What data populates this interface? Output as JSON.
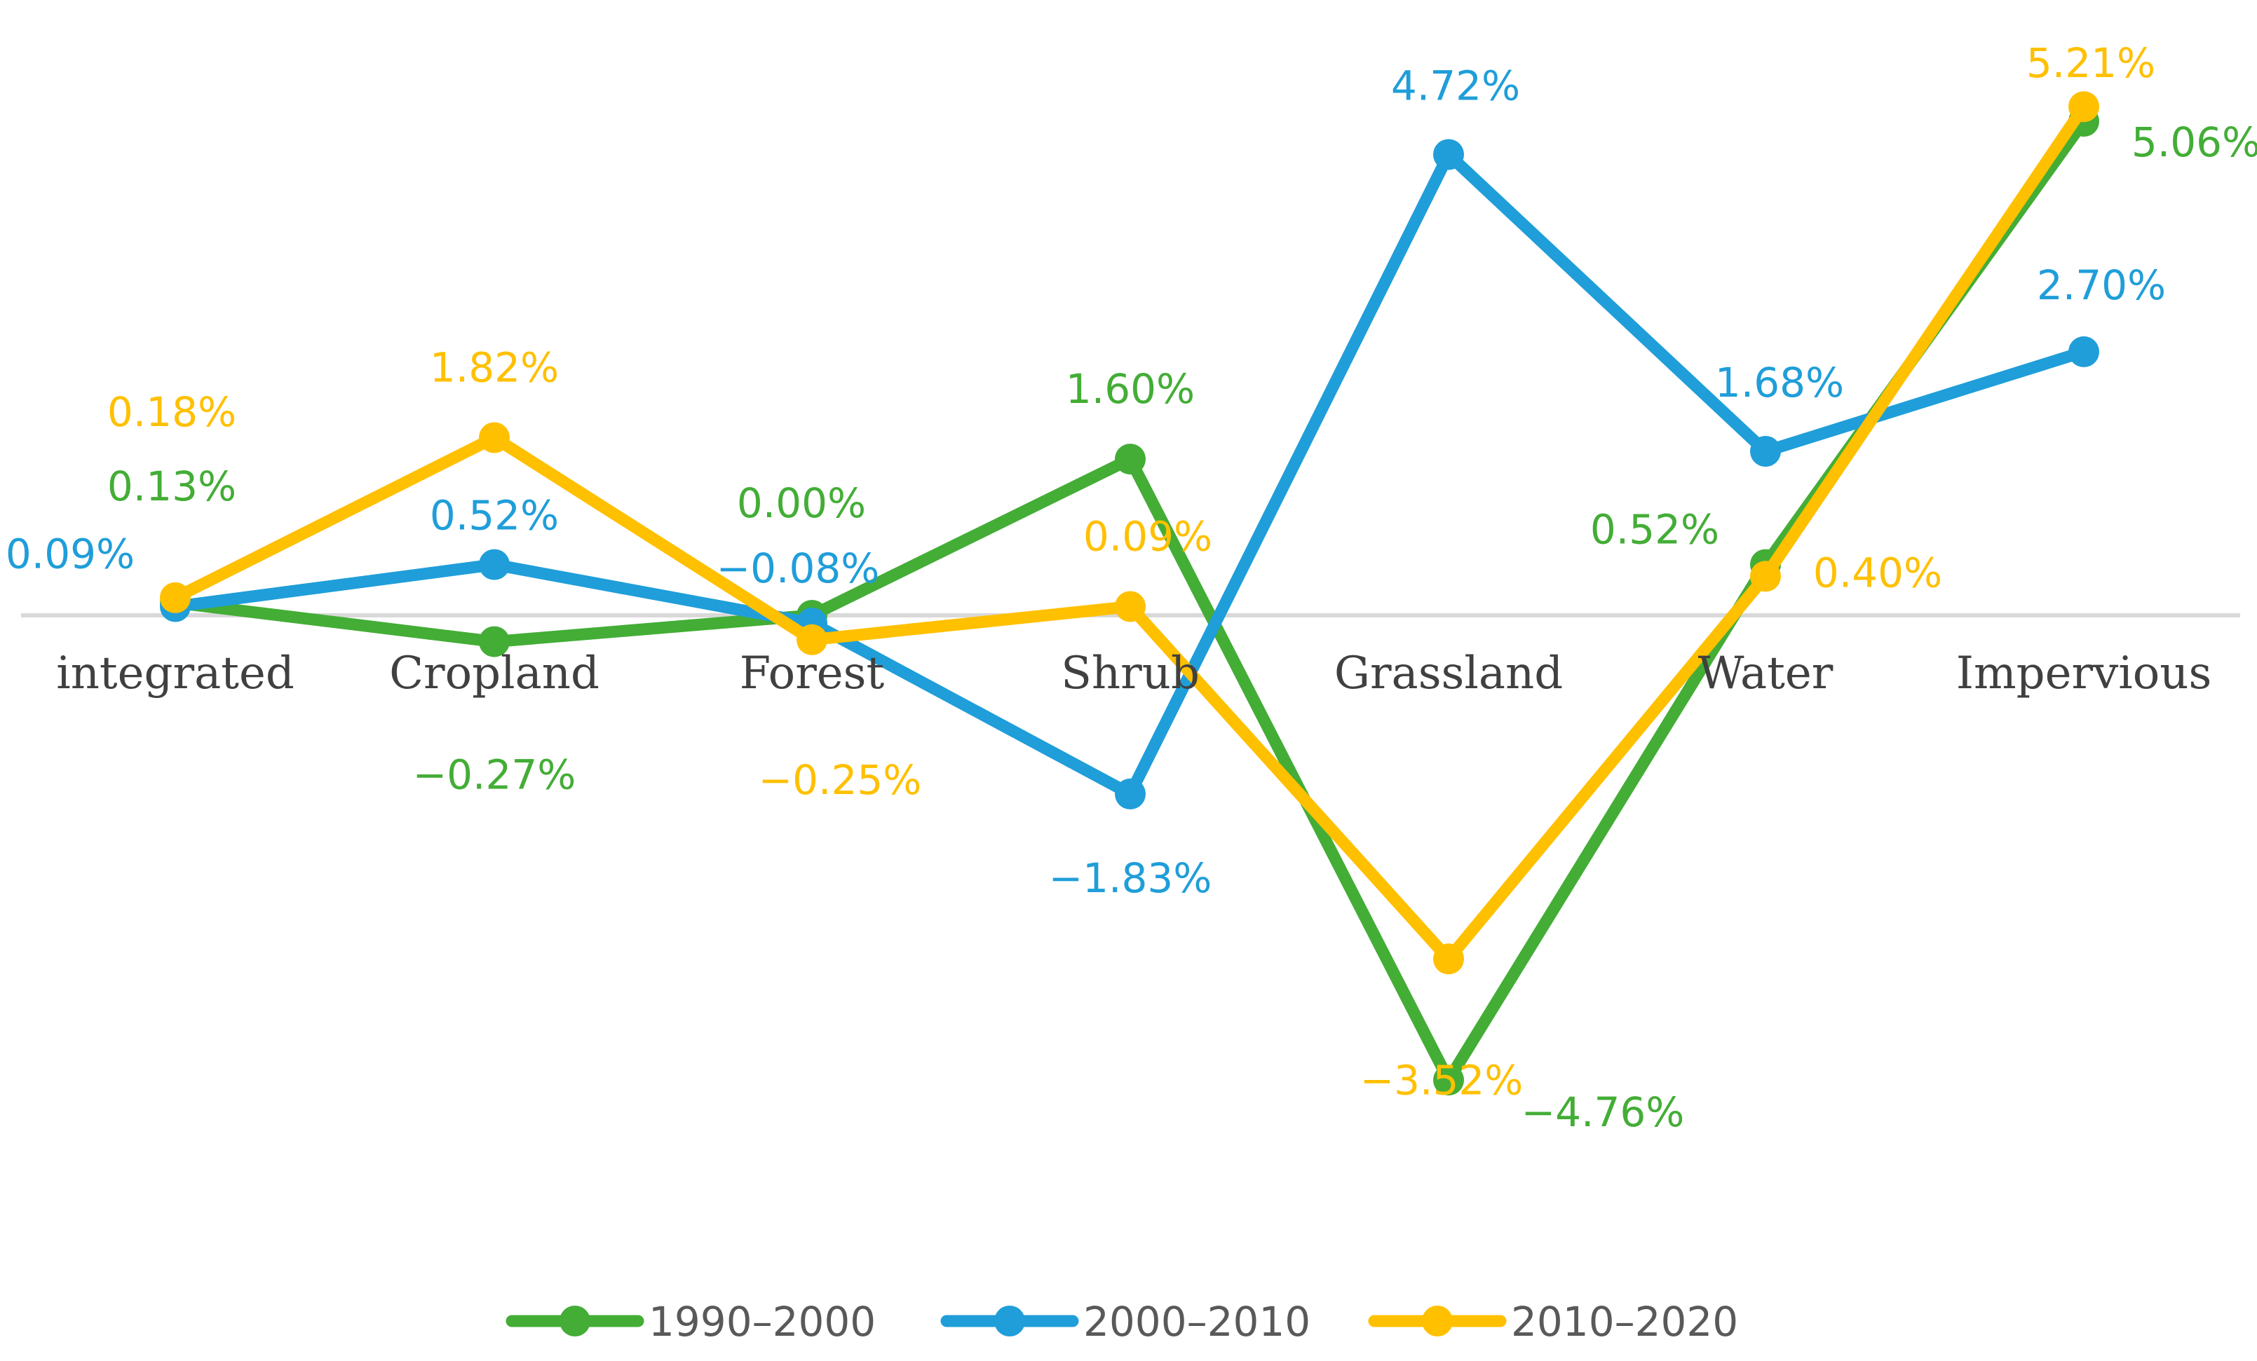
{
  "chart_data": {
    "type": "line",
    "title": "",
    "xlabel": "",
    "ylabel": "",
    "ylim": [
      -6,
      6
    ],
    "grid": false,
    "legend_position": "bottom",
    "categories": [
      "integrated",
      "Cropland",
      "Forest",
      "Shrub",
      "Grassland",
      "Water",
      "Impervious"
    ],
    "series": [
      {
        "name": "1990–2000",
        "color": "#43AD36",
        "values": [
          0.13,
          -0.27,
          0.0,
          1.6,
          -4.76,
          0.52,
          5.06
        ],
        "labels": [
          "0.13%",
          "−0.27%",
          "0.00%",
          "1.60%",
          "−4.76%",
          "0.52%",
          "5.06%"
        ]
      },
      {
        "name": "2000–2010",
        "color": "#1F9ED9",
        "values": [
          0.09,
          0.52,
          -0.08,
          -1.83,
          4.72,
          1.68,
          2.7
        ],
        "labels": [
          "0.09%",
          "0.52%",
          "−0.08%",
          "−1.83%",
          "4.72%",
          "1.68%",
          "2.70%"
        ]
      },
      {
        "name": "2010–2020",
        "color": "#FFC000",
        "values": [
          0.18,
          1.82,
          -0.25,
          0.09,
          -3.52,
          0.4,
          5.21
        ],
        "labels": [
          "0.18%",
          "1.82%",
          "−0.25%",
          "0.09%",
          "−3.52%",
          "0.40%",
          "5.21%"
        ]
      }
    ]
  }
}
